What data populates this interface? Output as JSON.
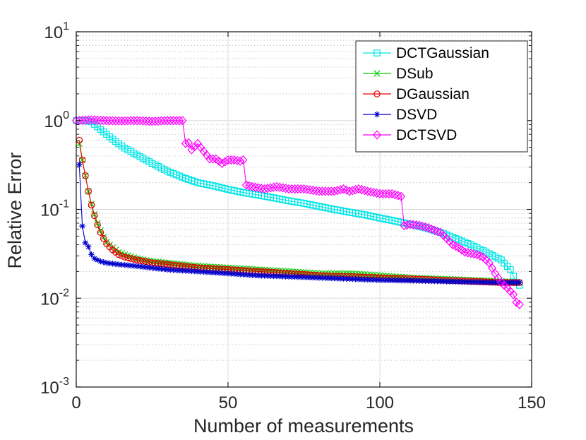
{
  "chart_data": {
    "type": "line",
    "title": "",
    "xlabel": "Number of measurements",
    "ylabel": "Relative Error",
    "xlim": [
      0,
      150
    ],
    "ylim": [
      0.001,
      10
    ],
    "yscale": "log",
    "grid": true,
    "legend_position": "top-right",
    "x_ticks": [
      0,
      50,
      100,
      150
    ],
    "x_tick_labels": [
      "0",
      "50",
      "100",
      "150"
    ],
    "y_ticks": [
      0.001,
      0.01,
      0.1,
      1,
      10
    ],
    "y_tick_labels": [
      {
        "base": "10",
        "exp": "-3"
      },
      {
        "base": "10",
        "exp": "-2"
      },
      {
        "base": "10",
        "exp": "-1"
      },
      {
        "base": "10",
        "exp": "0"
      },
      {
        "base": "10",
        "exp": "1"
      }
    ],
    "series": [
      {
        "name": "DCTGaussian",
        "color": "#00e5e5",
        "marker": "square",
        "points": [
          [
            0,
            1.0
          ],
          [
            3,
            1.0
          ],
          [
            5,
            0.97
          ],
          [
            7,
            0.85
          ],
          [
            10,
            0.7
          ],
          [
            13,
            0.58
          ],
          [
            16,
            0.49
          ],
          [
            20,
            0.41
          ],
          [
            25,
            0.33
          ],
          [
            30,
            0.27
          ],
          [
            35,
            0.23
          ],
          [
            40,
            0.2
          ],
          [
            45,
            0.185
          ],
          [
            50,
            0.168
          ],
          [
            55,
            0.155
          ],
          [
            60,
            0.145
          ],
          [
            65,
            0.135
          ],
          [
            70,
            0.125
          ],
          [
            75,
            0.117
          ],
          [
            80,
            0.108
          ],
          [
            85,
            0.1
          ],
          [
            90,
            0.093
          ],
          [
            95,
            0.087
          ],
          [
            100,
            0.08
          ],
          [
            105,
            0.074
          ],
          [
            110,
            0.068
          ],
          [
            115,
            0.062
          ],
          [
            120,
            0.055
          ],
          [
            125,
            0.047
          ],
          [
            130,
            0.04
          ],
          [
            135,
            0.033
          ],
          [
            140,
            0.027
          ],
          [
            143,
            0.021
          ],
          [
            145,
            0.015
          ],
          [
            146,
            0.014
          ]
        ]
      },
      {
        "name": "DSub",
        "color": "#00cc00",
        "marker": "x",
        "points": [
          [
            1,
            0.55
          ],
          [
            2,
            0.36
          ],
          [
            3,
            0.24
          ],
          [
            4,
            0.16
          ],
          [
            5,
            0.115
          ],
          [
            6,
            0.088
          ],
          [
            7,
            0.07
          ],
          [
            8,
            0.058
          ],
          [
            9,
            0.049
          ],
          [
            10,
            0.043
          ],
          [
            12,
            0.037
          ],
          [
            14,
            0.033
          ],
          [
            16,
            0.031
          ],
          [
            20,
            0.028
          ],
          [
            25,
            0.026
          ],
          [
            30,
            0.025
          ],
          [
            40,
            0.023
          ],
          [
            50,
            0.022
          ],
          [
            60,
            0.021
          ],
          [
            70,
            0.02
          ],
          [
            80,
            0.019
          ],
          [
            90,
            0.019
          ],
          [
            100,
            0.018
          ],
          [
            110,
            0.017
          ],
          [
            120,
            0.0165
          ],
          [
            130,
            0.016
          ],
          [
            140,
            0.0155
          ],
          [
            146,
            0.015
          ]
        ]
      },
      {
        "name": "DGaussian",
        "color": "#e60000",
        "marker": "circle",
        "points": [
          [
            1,
            0.6
          ],
          [
            2,
            0.36
          ],
          [
            3,
            0.24
          ],
          [
            4,
            0.16
          ],
          [
            5,
            0.112
          ],
          [
            6,
            0.085
          ],
          [
            7,
            0.067
          ],
          [
            8,
            0.055
          ],
          [
            9,
            0.047
          ],
          [
            10,
            0.041
          ],
          [
            12,
            0.035
          ],
          [
            14,
            0.031
          ],
          [
            16,
            0.029
          ],
          [
            20,
            0.027
          ],
          [
            25,
            0.025
          ],
          [
            30,
            0.024
          ],
          [
            40,
            0.022
          ],
          [
            50,
            0.021
          ],
          [
            60,
            0.02
          ],
          [
            70,
            0.019
          ],
          [
            80,
            0.018
          ],
          [
            90,
            0.0175
          ],
          [
            100,
            0.017
          ],
          [
            110,
            0.0165
          ],
          [
            120,
            0.016
          ],
          [
            130,
            0.0155
          ],
          [
            140,
            0.015
          ],
          [
            146,
            0.015
          ]
        ]
      },
      {
        "name": "DSVD",
        "color": "#0000cc",
        "marker": "star",
        "points": [
          [
            1,
            0.32
          ],
          [
            2,
            0.065
          ],
          [
            3,
            0.042
          ],
          [
            4,
            0.038
          ],
          [
            5,
            0.031
          ],
          [
            6,
            0.028
          ],
          [
            8,
            0.026
          ],
          [
            10,
            0.025
          ],
          [
            14,
            0.024
          ],
          [
            20,
            0.023
          ],
          [
            30,
            0.021
          ],
          [
            40,
            0.02
          ],
          [
            50,
            0.019
          ],
          [
            60,
            0.018
          ],
          [
            70,
            0.0175
          ],
          [
            80,
            0.017
          ],
          [
            90,
            0.0165
          ],
          [
            100,
            0.016
          ],
          [
            110,
            0.0158
          ],
          [
            120,
            0.0155
          ],
          [
            130,
            0.0152
          ],
          [
            140,
            0.015
          ],
          [
            146,
            0.015
          ]
        ]
      },
      {
        "name": "DCTSVD",
        "color": "#ff00ff",
        "marker": "diamond",
        "points": [
          [
            0,
            1.0
          ],
          [
            5,
            1.02
          ],
          [
            10,
            1.0
          ],
          [
            15,
            0.99
          ],
          [
            20,
            1.0
          ],
          [
            25,
            0.98
          ],
          [
            30,
            1.0
          ],
          [
            35,
            1.0
          ],
          [
            35.5,
            0.55
          ],
          [
            37,
            0.56
          ],
          [
            38,
            0.47
          ],
          [
            40,
            0.55
          ],
          [
            42,
            0.45
          ],
          [
            44,
            0.37
          ],
          [
            46,
            0.37
          ],
          [
            48,
            0.33
          ],
          [
            50,
            0.36
          ],
          [
            52,
            0.36
          ],
          [
            54,
            0.35
          ],
          [
            55,
            0.36
          ],
          [
            55.5,
            0.19
          ],
          [
            58,
            0.18
          ],
          [
            62,
            0.17
          ],
          [
            66,
            0.18
          ],
          [
            70,
            0.17
          ],
          [
            75,
            0.17
          ],
          [
            80,
            0.16
          ],
          [
            85,
            0.16
          ],
          [
            88,
            0.17
          ],
          [
            90,
            0.16
          ],
          [
            93,
            0.17
          ],
          [
            96,
            0.16
          ],
          [
            100,
            0.15
          ],
          [
            104,
            0.15
          ],
          [
            107,
            0.14
          ],
          [
            107.5,
            0.065
          ],
          [
            110,
            0.068
          ],
          [
            113,
            0.066
          ],
          [
            116,
            0.062
          ],
          [
            118,
            0.058
          ],
          [
            120,
            0.055
          ],
          [
            122,
            0.047
          ],
          [
            124,
            0.04
          ],
          [
            126,
            0.037
          ],
          [
            128,
            0.033
          ],
          [
            130,
            0.032
          ],
          [
            132,
            0.031
          ],
          [
            134,
            0.029
          ],
          [
            136,
            0.025
          ],
          [
            138,
            0.019
          ],
          [
            140,
            0.015
          ],
          [
            142,
            0.013
          ],
          [
            144,
            0.011
          ],
          [
            145,
            0.009
          ],
          [
            146,
            0.0085
          ]
        ]
      }
    ]
  }
}
